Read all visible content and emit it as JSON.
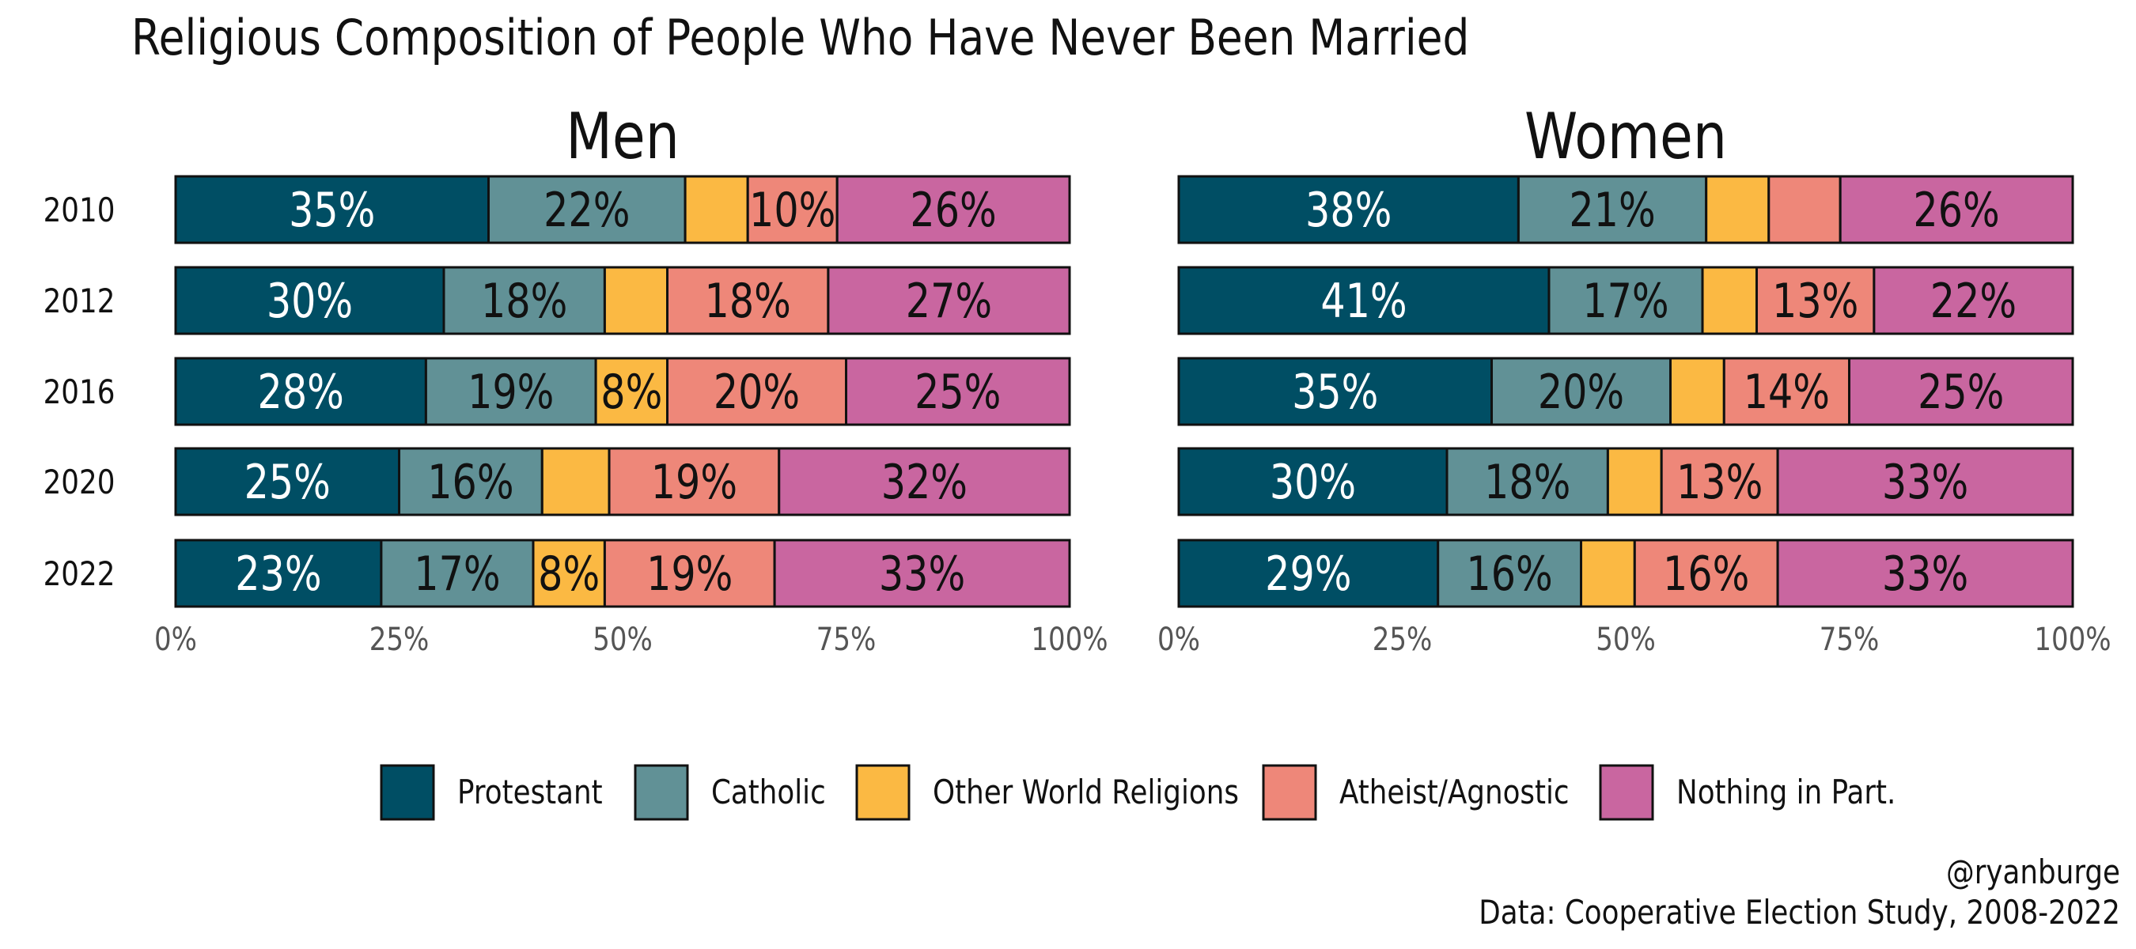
{
  "chart_data": {
    "type": "bar",
    "orientation": "horizontal",
    "stacked": true,
    "title": "Religious Composition of People Who Have Never Been Married",
    "categories": [
      "2010",
      "2012",
      "2016",
      "2020",
      "2022"
    ],
    "x_ticks": [
      "0%",
      "25%",
      "50%",
      "75%",
      "100%"
    ],
    "xlim": [
      0,
      100
    ],
    "legend_position": "bottom",
    "legend": [
      {
        "name": "Protestant",
        "color": "#004e64"
      },
      {
        "name": "Catholic",
        "color": "#619196"
      },
      {
        "name": "Other World Religions",
        "color": "#fbb943"
      },
      {
        "name": "Atheist/Agnostic",
        "color": "#ee8779"
      },
      {
        "name": "Nothing in Part.",
        "color": "#c966a0"
      }
    ],
    "panels": [
      {
        "title": "Men",
        "values": [
          [
            35,
            22,
            7,
            10,
            26
          ],
          [
            30,
            18,
            7,
            18,
            27
          ],
          [
            28,
            19,
            8,
            20,
            25
          ],
          [
            25,
            16,
            7.5,
            19,
            32.5
          ],
          [
            23,
            17,
            8,
            19,
            33
          ]
        ],
        "labels": [
          [
            "35%",
            "22%",
            "",
            "10%",
            "26%"
          ],
          [
            "30%",
            "18%",
            "",
            "18%",
            "27%"
          ],
          [
            "28%",
            "19%",
            "8%",
            "20%",
            "25%"
          ],
          [
            "25%",
            "16%",
            "",
            "19%",
            "32%"
          ],
          [
            "23%",
            "17%",
            "8%",
            "19%",
            "33%"
          ]
        ]
      },
      {
        "title": "Women",
        "values": [
          [
            38,
            21,
            7,
            8,
            26
          ],
          [
            41,
            17,
            6,
            13,
            22
          ],
          [
            35,
            20,
            6,
            14,
            25
          ],
          [
            30,
            18,
            6,
            13,
            33
          ],
          [
            29,
            16,
            6,
            16,
            33
          ]
        ],
        "labels": [
          [
            "38%",
            "21%",
            "",
            "",
            "26%"
          ],
          [
            "41%",
            "17%",
            "",
            "13%",
            "22%"
          ],
          [
            "35%",
            "20%",
            "",
            "14%",
            "25%"
          ],
          [
            "30%",
            "18%",
            "",
            "13%",
            "33%"
          ],
          [
            "29%",
            "16%",
            "",
            "16%",
            "33%"
          ]
        ]
      }
    ],
    "label_colors": [
      "#ffffff",
      "#111111",
      "#111111",
      "#111111",
      "#111111"
    ]
  },
  "credits": [
    "@ryanburge",
    "Data: Cooperative Election Study, 2008-2022"
  ]
}
